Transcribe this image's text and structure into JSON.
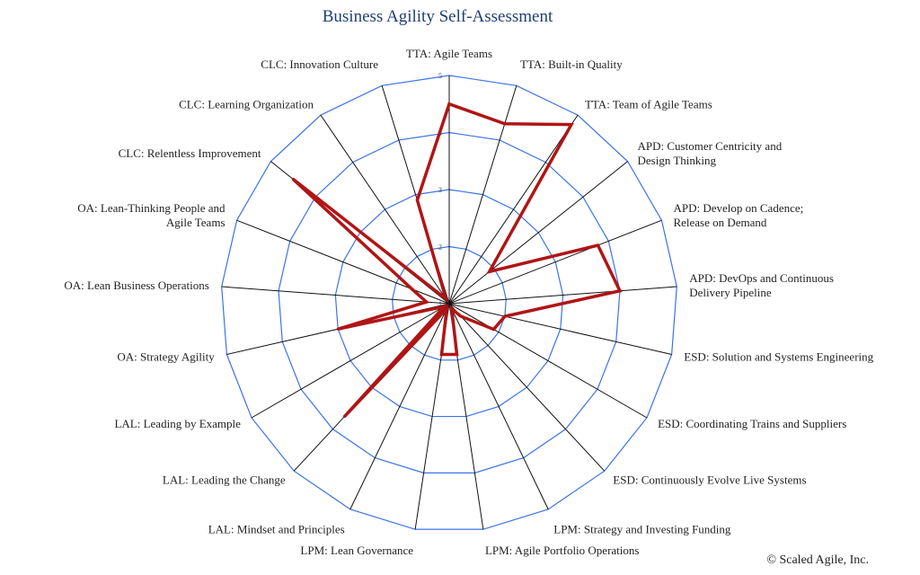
{
  "title": "Business Agility Self-Assessment",
  "copyright": "© Scaled Agile, Inc.",
  "colors": {
    "grid": "#3b73e6",
    "spokes": "#111111",
    "series": "#b01515",
    "title": "#1f3f73"
  },
  "chart_data": {
    "type": "radar",
    "title": "Business Agility Self-Assessment",
    "rmin": 1,
    "rmax": 5,
    "ticks": [
      1,
      2,
      3,
      4,
      5
    ],
    "grid": true,
    "legend": "none",
    "categories": [
      "TTA: Agile Teams",
      "TTA: Built-in Quality",
      "TTA: Team of Agile Teams",
      [
        "APD: Customer Centricity and",
        "Design Thinking"
      ],
      [
        "APD: Develop on Cadence;",
        "Release on Demand"
      ],
      [
        "APD: DevOps and Continuous",
        "Delivery Pipeline"
      ],
      "ESD: Solution and Systems Engineering",
      "ESD: Coordinating Trains and Suppliers",
      "ESD: Continuously Evolve Live Systems",
      "LPM: Strategy and Investing Funding",
      "LPM: Agile Portfolio Operations",
      "LPM: Lean Governance",
      "LAL: Mindset and Principles",
      "LAL: Leading the Change",
      "LAL: Leading by Example",
      "OA: Strategy Agility",
      "OA: Lean Business Operations",
      [
        "OA: Lean-Thinking People and",
        "Agile Teams"
      ],
      "CLC: Relentless Improvement",
      "CLC: Learning Organization",
      "CLC: Innovation Culture"
    ],
    "series": [
      {
        "values": [
          4.5,
          4.3,
          4.8,
          1.9,
          3.8,
          4.0,
          2.0,
          1.9,
          1.3,
          1.1,
          1.9,
          1.9,
          1.1,
          3.7,
          1.1,
          3.0,
          1.4,
          1.7,
          4.5,
          1.1,
          2.9
        ]
      }
    ]
  }
}
